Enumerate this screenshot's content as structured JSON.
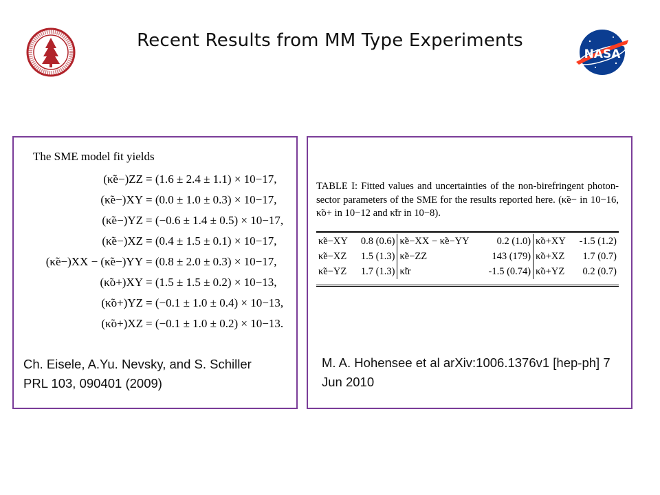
{
  "slide": {
    "title": "Recent Results from MM Type Experiments",
    "logos": [
      {
        "name": "stanford-seal",
        "color": "#b1242b"
      },
      {
        "name": "nasa-meatball",
        "color": "#0b3d91"
      }
    ]
  },
  "left_panel": {
    "heading": "The SME model fit yields",
    "equations": [
      {
        "lhs": "(κ̃e−)ZZ",
        "rhs": "= (1.6 ± 2.4 ± 1.1) × 10−17,"
      },
      {
        "lhs": "(κ̃e−)XY",
        "rhs": "= (0.0 ± 1.0 ± 0.3) × 10−17,"
      },
      {
        "lhs": "(κ̃e−)YZ",
        "rhs": "= (−0.6 ± 1.4 ± 0.5) × 10−17,"
      },
      {
        "lhs": "(κ̃e−)XZ",
        "rhs": "= (0.4 ± 1.5 ± 0.1) × 10−17,"
      },
      {
        "lhs": "(κ̃e−)XX − (κ̃e−)YY",
        "rhs": "= (0.8 ± 2.0 ± 0.3) × 10−17,"
      },
      {
        "lhs": "(κ̃o+)XY",
        "rhs": "= (1.5 ± 1.5 ± 0.2) × 10−13,"
      },
      {
        "lhs": "(κ̃o+)YZ",
        "rhs": "= (−0.1 ± 1.0 ± 0.4) × 10−13,"
      },
      {
        "lhs": "(κ̃o+)XZ",
        "rhs": "= (−0.1 ± 1.0 ± 0.2) × 10−13."
      }
    ],
    "reference": "Ch. Eisele, A.Yu. Nevsky, and S. Schiller PRL 103, 090401 (2009)"
  },
  "right_panel": {
    "caption": "TABLE I: Fitted values and uncertainties of the non-birefringent photon-sector parameters of the SME for the results reported here. (κ̃e− in 10−16, κ̃o+ in 10−12 and κ̃tr in 10−8).",
    "table": [
      [
        "κ̃e−XY",
        "0.8 (0.6)",
        "κ̃e−XX − κ̃e−YY",
        "0.2 (1.0)",
        "κ̃o+XY",
        "-1.5 (1.2)"
      ],
      [
        "κ̃e−XZ",
        "1.5 (1.3)",
        "κ̃e−ZZ",
        "143 (179)",
        "κ̃o+XZ",
        "1.7 (0.7)"
      ],
      [
        "κ̃e−YZ",
        "1.7 (1.3)",
        "κ̃tr",
        "-1.5 (0.74)",
        "κ̃o+YZ",
        "0.2 (0.7)"
      ]
    ],
    "reference": "M. A. Hohensee et al arXiv:1006.1376v1 [hep-ph] 7 Jun 2010"
  },
  "colors": {
    "panel_border": "#7a3c98"
  }
}
